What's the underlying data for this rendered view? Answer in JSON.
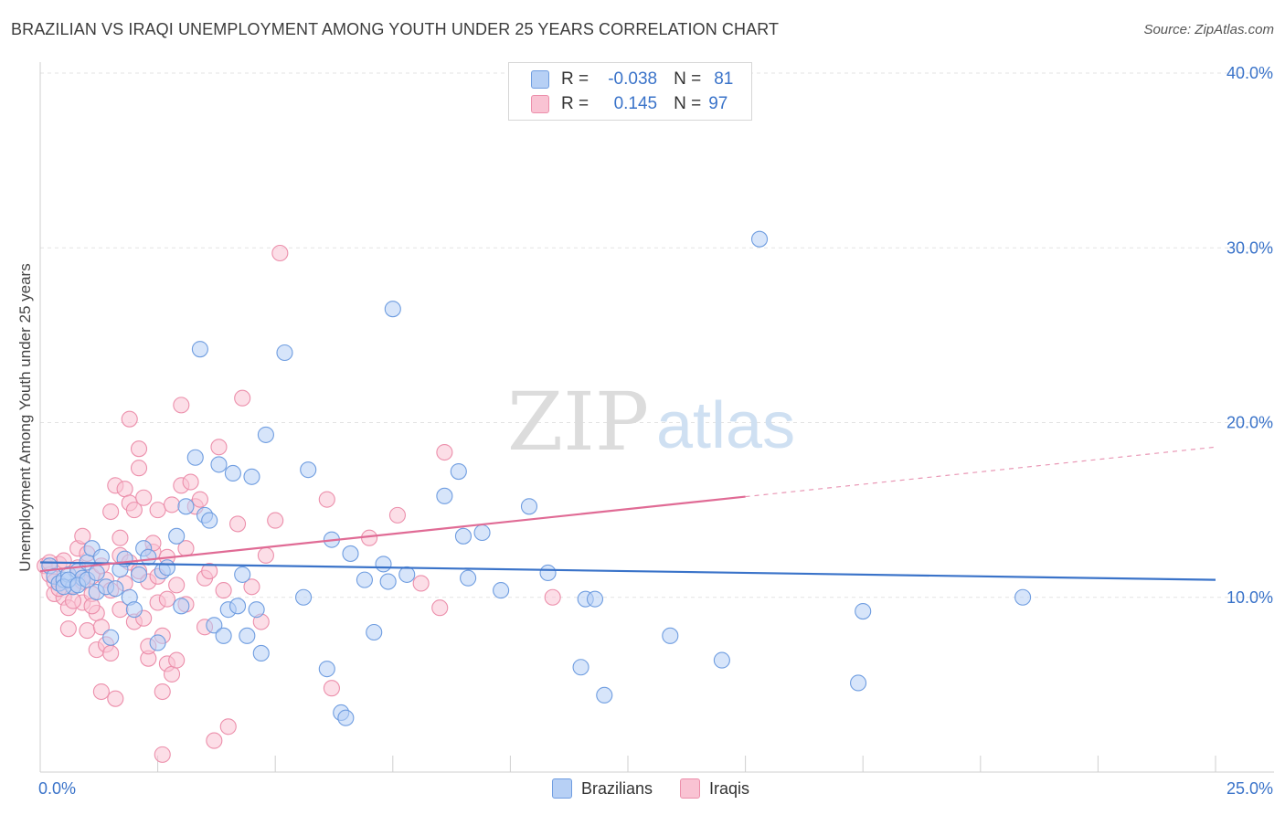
{
  "header": {
    "title": "BRAZILIAN VS IRAQI UNEMPLOYMENT AMONG YOUTH UNDER 25 YEARS CORRELATION CHART",
    "source": "Source: ZipAtlas.com"
  },
  "watermark": {
    "zip": "ZIP",
    "atlas": "atlas"
  },
  "legend_stats": {
    "r_label": "R =",
    "n_label": "N =",
    "rows": [
      {
        "r": "-0.038",
        "n": "81",
        "fill": "#b7d0f5",
        "stroke": "#6f9de0"
      },
      {
        "r": "0.145",
        "n": "97",
        "fill": "#f9c3d3",
        "stroke": "#ec8fab"
      }
    ]
  },
  "chart_data": {
    "type": "scatter",
    "xlabel": "",
    "ylabel": "Unemployment Among Youth under 25 years",
    "xlim": [
      0,
      25
    ],
    "ylim": [
      0,
      40
    ],
    "x_tick_labels": [
      "0.0%",
      "25.0%"
    ],
    "y_tick_labels": [
      "10.0%",
      "20.0%",
      "30.0%",
      "40.0%"
    ],
    "y_ticks": [
      10,
      20,
      30,
      40
    ],
    "grid": true,
    "legend_position": "bottom-center",
    "series": [
      {
        "name": "Brazilians",
        "color": "#3a73c9",
        "fill": "#b7d0f5",
        "trend": {
          "x": [
            0,
            25
          ],
          "y": [
            12.0,
            11.0
          ],
          "solid_until": 25
        },
        "points": [
          [
            0.2,
            11.8
          ],
          [
            0.3,
            11.2
          ],
          [
            0.4,
            10.8
          ],
          [
            0.5,
            11.0
          ],
          [
            0.6,
            11.3
          ],
          [
            0.7,
            10.6
          ],
          [
            0.8,
            11.5
          ],
          [
            0.9,
            11.1
          ],
          [
            1.0,
            12.0
          ],
          [
            1.1,
            12.8
          ],
          [
            1.2,
            10.3
          ],
          [
            1.3,
            12.3
          ],
          [
            1.4,
            10.6
          ],
          [
            1.5,
            7.7
          ],
          [
            1.6,
            10.5
          ],
          [
            1.7,
            11.6
          ],
          [
            1.8,
            12.2
          ],
          [
            1.9,
            10.0
          ],
          [
            2.0,
            9.3
          ],
          [
            2.1,
            11.3
          ],
          [
            2.2,
            12.8
          ],
          [
            2.3,
            12.3
          ],
          [
            2.5,
            7.4
          ],
          [
            2.6,
            11.5
          ],
          [
            2.7,
            11.7
          ],
          [
            2.9,
            13.5
          ],
          [
            3.0,
            9.5
          ],
          [
            3.1,
            15.2
          ],
          [
            3.3,
            18.0
          ],
          [
            3.4,
            24.2
          ],
          [
            3.5,
            14.7
          ],
          [
            3.6,
            14.4
          ],
          [
            3.7,
            8.4
          ],
          [
            3.8,
            17.6
          ],
          [
            3.9,
            7.8
          ],
          [
            4.0,
            9.3
          ],
          [
            4.1,
            17.1
          ],
          [
            4.2,
            9.5
          ],
          [
            4.3,
            11.3
          ],
          [
            4.4,
            7.8
          ],
          [
            4.5,
            16.9
          ],
          [
            4.6,
            9.3
          ],
          [
            4.7,
            6.8
          ],
          [
            4.8,
            19.3
          ],
          [
            5.2,
            24.0
          ],
          [
            5.6,
            10.0
          ],
          [
            5.7,
            17.3
          ],
          [
            6.1,
            5.9
          ],
          [
            6.2,
            13.3
          ],
          [
            6.4,
            3.4
          ],
          [
            6.5,
            3.1
          ],
          [
            6.6,
            12.5
          ],
          [
            6.9,
            11.0
          ],
          [
            7.1,
            8.0
          ],
          [
            7.3,
            11.9
          ],
          [
            7.4,
            10.9
          ],
          [
            7.5,
            26.5
          ],
          [
            7.8,
            11.3
          ],
          [
            8.6,
            15.8
          ],
          [
            8.9,
            17.2
          ],
          [
            9.0,
            13.5
          ],
          [
            9.1,
            11.1
          ],
          [
            9.4,
            13.7
          ],
          [
            9.8,
            10.4
          ],
          [
            10.4,
            15.2
          ],
          [
            10.8,
            11.4
          ],
          [
            11.5,
            6.0
          ],
          [
            11.6,
            9.9
          ],
          [
            11.8,
            9.9
          ],
          [
            12.0,
            4.4
          ],
          [
            13.4,
            7.8
          ],
          [
            14.5,
            6.4
          ],
          [
            15.3,
            30.5
          ],
          [
            17.4,
            5.1
          ],
          [
            17.5,
            9.2
          ],
          [
            20.9,
            10.0
          ],
          [
            0.5,
            10.6
          ],
          [
            0.6,
            11.0
          ],
          [
            0.8,
            10.7
          ],
          [
            1.0,
            11.0
          ],
          [
            1.2,
            11.4
          ]
        ]
      },
      {
        "name": "Iraqis",
        "color": "#e06b95",
        "fill": "#f9c3d3",
        "trend": {
          "x": [
            0,
            25
          ],
          "y": [
            11.5,
            18.6
          ],
          "solid_until": 15
        },
        "points": [
          [
            0.1,
            11.8
          ],
          [
            0.2,
            11.3
          ],
          [
            0.3,
            10.9
          ],
          [
            0.3,
            10.2
          ],
          [
            0.4,
            11.9
          ],
          [
            0.5,
            10.0
          ],
          [
            0.5,
            12.1
          ],
          [
            0.6,
            9.4
          ],
          [
            0.6,
            8.2
          ],
          [
            0.7,
            10.6
          ],
          [
            0.8,
            12.8
          ],
          [
            0.8,
            11.7
          ],
          [
            0.9,
            9.7
          ],
          [
            0.9,
            13.5
          ],
          [
            1.0,
            12.5
          ],
          [
            1.0,
            8.1
          ],
          [
            1.1,
            10.2
          ],
          [
            1.1,
            11.2
          ],
          [
            1.2,
            9.1
          ],
          [
            1.2,
            7.0
          ],
          [
            1.3,
            8.3
          ],
          [
            1.3,
            4.6
          ],
          [
            1.4,
            11.0
          ],
          [
            1.4,
            7.3
          ],
          [
            1.5,
            14.9
          ],
          [
            1.5,
            6.8
          ],
          [
            1.6,
            16.4
          ],
          [
            1.6,
            4.2
          ],
          [
            1.7,
            12.4
          ],
          [
            1.7,
            13.4
          ],
          [
            1.8,
            16.2
          ],
          [
            1.8,
            10.8
          ],
          [
            1.9,
            15.4
          ],
          [
            1.9,
            20.2
          ],
          [
            2.0,
            15.0
          ],
          [
            2.0,
            8.6
          ],
          [
            2.1,
            18.5
          ],
          [
            2.1,
            17.4
          ],
          [
            2.2,
            15.7
          ],
          [
            2.2,
            8.8
          ],
          [
            2.3,
            6.5
          ],
          [
            2.3,
            7.2
          ],
          [
            2.4,
            12.6
          ],
          [
            2.4,
            13.1
          ],
          [
            2.5,
            9.7
          ],
          [
            2.5,
            15.0
          ],
          [
            2.6,
            7.8
          ],
          [
            2.6,
            4.6
          ],
          [
            2.6,
            1.0
          ],
          [
            2.7,
            6.2
          ],
          [
            2.7,
            9.9
          ],
          [
            2.8,
            15.3
          ],
          [
            2.8,
            5.6
          ],
          [
            2.9,
            6.4
          ],
          [
            3.0,
            21.0
          ],
          [
            3.0,
            16.4
          ],
          [
            3.1,
            9.6
          ],
          [
            3.2,
            16.6
          ],
          [
            3.3,
            15.2
          ],
          [
            3.4,
            15.6
          ],
          [
            3.5,
            8.3
          ],
          [
            3.5,
            11.1
          ],
          [
            3.6,
            11.5
          ],
          [
            3.7,
            1.8
          ],
          [
            3.8,
            18.6
          ],
          [
            3.9,
            10.4
          ],
          [
            4.0,
            2.6
          ],
          [
            4.2,
            14.2
          ],
          [
            4.3,
            21.4
          ],
          [
            4.5,
            10.6
          ],
          [
            4.7,
            8.6
          ],
          [
            4.8,
            12.4
          ],
          [
            5.0,
            14.4
          ],
          [
            5.1,
            29.7
          ],
          [
            6.1,
            15.6
          ],
          [
            6.2,
            4.8
          ],
          [
            7.0,
            13.4
          ],
          [
            7.6,
            14.7
          ],
          [
            8.1,
            10.8
          ],
          [
            8.5,
            9.4
          ],
          [
            8.6,
            18.3
          ],
          [
            10.9,
            10.0
          ],
          [
            0.2,
            12.0
          ],
          [
            0.4,
            10.5
          ],
          [
            0.7,
            9.8
          ],
          [
            0.9,
            10.9
          ],
          [
            1.1,
            9.5
          ],
          [
            1.3,
            11.8
          ],
          [
            1.5,
            10.4
          ],
          [
            1.7,
            9.3
          ],
          [
            1.9,
            12.0
          ],
          [
            2.1,
            11.5
          ],
          [
            2.3,
            10.9
          ],
          [
            2.5,
            11.2
          ],
          [
            2.7,
            12.3
          ],
          [
            2.9,
            10.7
          ],
          [
            3.1,
            12.8
          ]
        ]
      }
    ]
  }
}
